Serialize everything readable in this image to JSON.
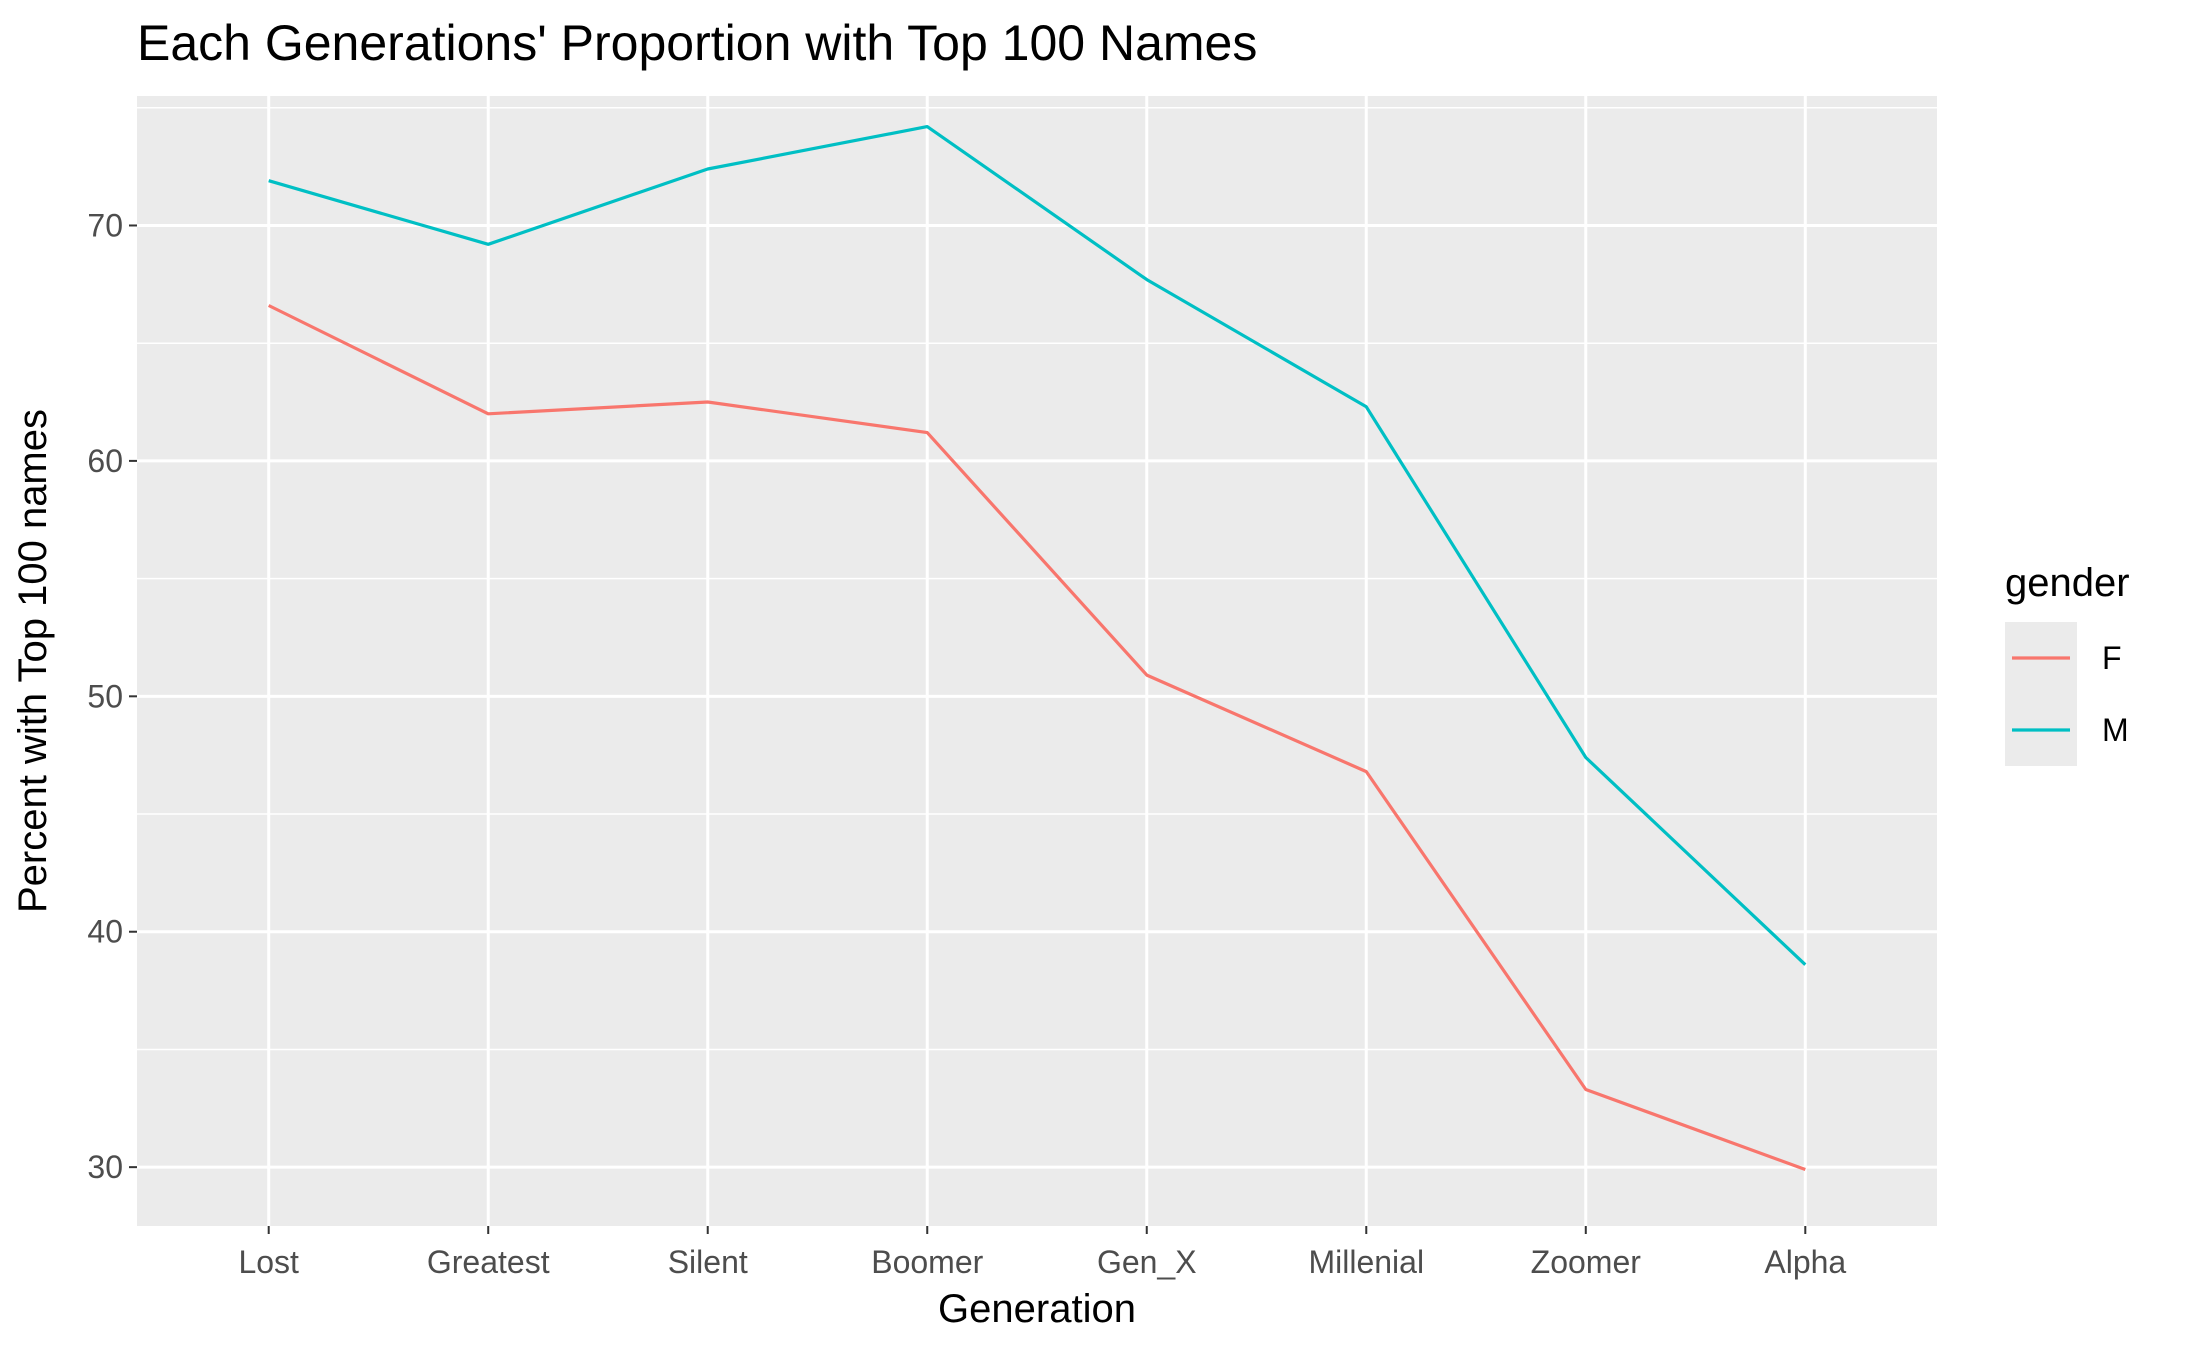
{
  "chart_data": {
    "type": "line",
    "title": "Each Generations' Proportion with Top 100 Names",
    "xlabel": "Generation",
    "ylabel": "Percent with Top 100 names",
    "categories": [
      "Lost",
      "Greatest",
      "Silent",
      "Boomer",
      "Gen_X",
      "Millenial",
      "Zoomer",
      "Alpha"
    ],
    "y_ticks": [
      "30",
      "40",
      "50",
      "60",
      "70"
    ],
    "ylim": [
      27.5,
      75.5
    ],
    "grid": true,
    "legend": {
      "title": "gender",
      "position": "right"
    },
    "series": [
      {
        "name": "F",
        "color": "#F8766D",
        "values": [
          66.6,
          62.0,
          62.5,
          61.2,
          50.9,
          46.8,
          33.3,
          29.9
        ]
      },
      {
        "name": "M",
        "color": "#00BFC4",
        "values": [
          71.9,
          69.2,
          72.4,
          74.2,
          67.7,
          62.3,
          47.4,
          38.6
        ]
      }
    ]
  }
}
